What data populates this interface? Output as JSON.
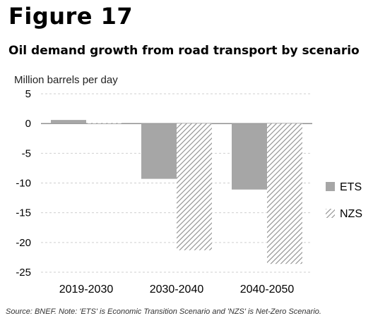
{
  "figure_label": "Figure 17",
  "source_note": "Source: BNEF. Note: 'ETS' is Economic Transition Scenario and 'NZS' is Net-Zero Scenario.",
  "chart_data": {
    "type": "bar",
    "title": "Oil demand growth from road transport by scenario",
    "ylabel": "Million barrels per day",
    "xlabel": "",
    "categories": [
      "2019-2030",
      "2030-2040",
      "2040-2050"
    ],
    "series": [
      {
        "name": "ETS",
        "values": [
          0.6,
          -9.3,
          -11.1
        ],
        "color": "#a6a6a6",
        "pattern": "solid"
      },
      {
        "name": "NZS",
        "values": [
          0.1,
          -21.3,
          -23.6
        ],
        "color": "#8c8c8c",
        "pattern": "diagonal-hatch"
      }
    ],
    "ylim": [
      -25,
      5
    ],
    "yticks": [
      5,
      0,
      -5,
      -10,
      -15,
      -20,
      -25
    ],
    "grid": true,
    "legend": "right"
  }
}
